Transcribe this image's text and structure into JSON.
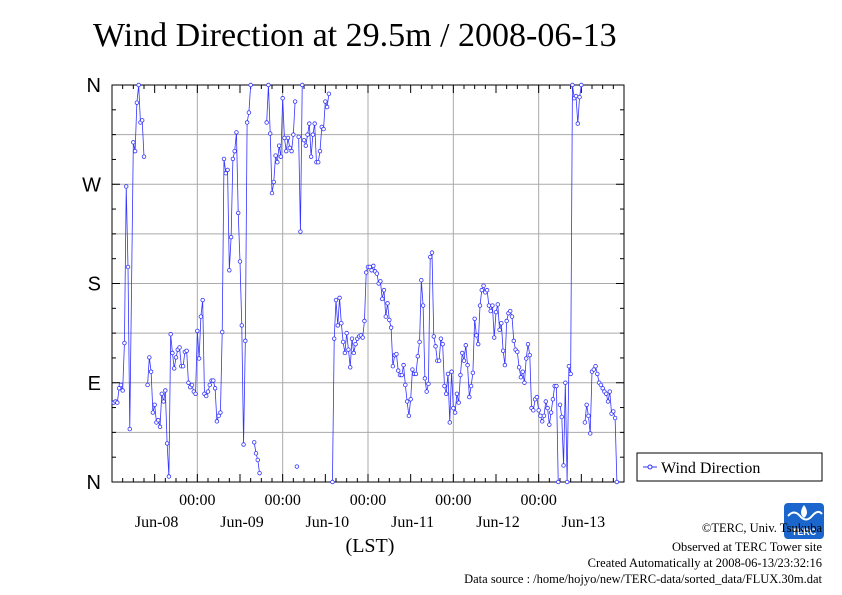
{
  "chart_data": {
    "type": "line",
    "title": "Wind Direction at 29.5m / 2008-06-13",
    "xlabel": "(LST)",
    "ylabel": "",
    "y_tick_labels": [
      "N",
      "E",
      "S",
      "W",
      "N"
    ],
    "y_tick_values": [
      0,
      90,
      180,
      270,
      360
    ],
    "ylim": [
      0,
      360
    ],
    "xlim": [
      0,
      144
    ],
    "x_unit": "hours since 2008-06-08 00:00 LST",
    "x_tick_time_labels": [
      "00:00",
      "00:00",
      "00:00",
      "00:00",
      "00:00"
    ],
    "x_tick_time_values": [
      24,
      48,
      72,
      96,
      120
    ],
    "x_day_labels": [
      "Jun-08",
      "Jun-09",
      "Jun-10",
      "Jun-11",
      "Jun-12",
      "Jun-13"
    ],
    "x_day_centers": [
      12,
      36,
      60,
      84,
      108,
      132
    ],
    "grid": true,
    "legend_position": "right",
    "series": [
      {
        "name": "Wind Direction",
        "color": "#3333ff",
        "segments": [
          [
            [
              0.5,
              72
            ],
            [
              1,
              73
            ],
            [
              1.5,
              72
            ],
            [
              2,
              85
            ],
            [
              2.5,
              88
            ],
            [
              3,
              83
            ],
            [
              3.5,
              126
            ],
            [
              4,
              268
            ],
            [
              4.5,
              195
            ],
            [
              5,
              48
            ],
            [
              6,
              308
            ],
            [
              6.5,
              300
            ],
            [
              7,
              344
            ],
            [
              7.5,
              360
            ],
            [
              8,
              326
            ],
            [
              8.5,
              328
            ],
            [
              9,
              295
            ]
          ],
          [
            [
              10,
              88
            ],
            [
              10.5,
              113
            ],
            [
              11,
              100
            ],
            [
              11.5,
              63
            ],
            [
              12,
              70
            ],
            [
              12.5,
              54
            ],
            [
              13,
              56
            ],
            [
              13.5,
              50
            ],
            [
              14,
              80
            ],
            [
              14.5,
              73
            ],
            [
              15,
              83
            ],
            [
              15.5,
              35
            ],
            [
              16,
              5
            ],
            [
              16.5,
              134
            ],
            [
              17,
              117
            ],
            [
              17.5,
              103
            ],
            [
              18,
              113
            ],
            [
              18.5,
              120
            ],
            [
              19,
              122
            ],
            [
              19.5,
              105
            ],
            [
              20,
              105
            ],
            [
              20.5,
              118
            ],
            [
              21,
              119
            ],
            [
              21.5,
              90
            ],
            [
              22,
              86
            ],
            [
              22.5,
              88
            ],
            [
              23,
              82
            ],
            [
              23.5,
              80
            ],
            [
              24,
              137
            ],
            [
              24.5,
              112
            ],
            [
              25,
              150
            ],
            [
              25.5,
              165
            ],
            [
              26,
              80
            ],
            [
              26.5,
              78
            ],
            [
              27,
              82
            ],
            [
              27.5,
              88
            ],
            [
              28,
              92
            ],
            [
              28.5,
              92
            ],
            [
              29,
              85
            ],
            [
              29.5,
              55
            ],
            [
              30,
              60
            ],
            [
              30.5,
              63
            ],
            [
              31,
              136
            ],
            [
              31.5,
              293
            ],
            [
              32,
              280
            ],
            [
              32.5,
              283
            ],
            [
              33,
              192
            ],
            [
              33.5,
              222
            ],
            [
              34,
              293
            ],
            [
              34.5,
              300
            ],
            [
              35,
              317
            ],
            [
              35.5,
              244
            ],
            [
              36,
              200
            ],
            [
              36.5,
              142
            ],
            [
              37,
              34
            ],
            [
              37.5,
              128
            ],
            [
              38,
              326
            ],
            [
              38.5,
              335
            ],
            [
              39,
              360
            ]
          ],
          [
            [
              40,
              36
            ],
            [
              40.5,
              26
            ],
            [
              41,
              20
            ],
            [
              41.5,
              8
            ]
          ],
          [
            [
              43.5,
              326
            ],
            [
              44,
              360
            ],
            [
              44.5,
              316
            ],
            [
              45,
              262
            ],
            [
              45.5,
              272
            ],
            [
              46,
              296
            ],
            [
              46.5,
              290
            ],
            [
              47,
              305
            ],
            [
              47.5,
              295
            ],
            [
              48,
              348
            ],
            [
              48.5,
              312
            ],
            [
              49,
              300
            ],
            [
              49.5,
              312
            ],
            [
              50,
              303
            ],
            [
              50.5,
              300
            ],
            [
              51,
              315
            ],
            [
              51.5,
              345
            ]
          ],
          [
            [
              52,
              14
            ]
          ],
          [
            [
              52.5,
              313
            ],
            [
              53,
              227
            ],
            [
              53.5,
              360
            ]
          ],
          [
            [
              54,
              310
            ],
            [
              54.5,
              305
            ],
            [
              55,
              315
            ],
            [
              55.5,
              325
            ],
            [
              56,
              295
            ],
            [
              56.5,
              315
            ],
            [
              57,
              325
            ],
            [
              57.5,
              290
            ],
            [
              58,
              290
            ],
            [
              58.5,
              300
            ],
            [
              59,
              322
            ],
            [
              59.5,
              320
            ],
            [
              60,
              345
            ],
            [
              60.5,
              340
            ],
            [
              61,
              352
            ]
          ],
          [
            [
              62,
              0
            ],
            [
              62.5,
              130
            ],
            [
              63,
              165
            ],
            [
              63.5,
              142
            ],
            [
              64,
              167
            ],
            [
              64.5,
              144
            ],
            [
              65,
              127
            ],
            [
              65.5,
              117
            ],
            [
              66,
              135
            ],
            [
              66.5,
              120
            ],
            [
              67,
              104
            ],
            [
              67.5,
              130
            ],
            [
              68,
              117
            ],
            [
              68.5,
              125
            ],
            [
              69,
              130
            ],
            [
              69.5,
              132
            ],
            [
              70,
              133
            ],
            [
              70.5,
              131
            ],
            [
              71,
              146
            ],
            [
              71.5,
              190
            ],
            [
              72,
              195
            ],
            [
              72.5,
              195
            ],
            [
              73,
              192
            ],
            [
              73.5,
              196
            ],
            [
              74,
              191
            ],
            [
              74.5,
              189
            ],
            [
              75,
              180
            ],
            [
              75.5,
              182
            ],
            [
              76,
              166
            ],
            [
              76.5,
              174
            ],
            [
              77,
              150
            ],
            [
              77.5,
              162
            ],
            [
              78,
              147
            ],
            [
              78.5,
              140
            ],
            [
              79,
              105
            ],
            [
              79.5,
              115
            ],
            [
              80,
              116
            ],
            [
              80.5,
              101
            ],
            [
              81,
              97
            ],
            [
              81.5,
              97
            ],
            [
              82,
              106
            ],
            [
              82.5,
              88
            ],
            [
              83,
              73
            ],
            [
              83.5,
              60
            ],
            [
              84,
              75
            ],
            [
              84.5,
              102
            ],
            [
              85,
              98
            ],
            [
              85.5,
              98
            ],
            [
              86,
              114
            ],
            [
              86.5,
              127
            ],
            [
              87,
              183
            ],
            [
              87.5,
              160
            ],
            [
              88,
              94
            ],
            [
              88.5,
              82
            ],
            [
              89,
              89
            ],
            [
              89.5,
              204
            ],
            [
              90,
              208
            ],
            [
              90.5,
              132
            ],
            [
              91,
              123
            ],
            [
              91.5,
              110
            ],
            [
              92,
              110
            ],
            [
              92.5,
              130
            ],
            [
              93,
              125
            ],
            [
              93.5,
              87
            ],
            [
              94,
              80
            ],
            [
              94.5,
              98
            ],
            [
              95,
              54
            ],
            [
              95.5,
              100
            ],
            [
              96,
              67
            ],
            [
              96.5,
              63
            ],
            [
              97,
              80
            ],
            [
              97.5,
              72
            ],
            [
              98,
              97
            ],
            [
              98.5,
              117
            ],
            [
              99,
              110
            ],
            [
              99.5,
              124
            ],
            [
              100,
              106
            ],
            [
              100.5,
              77
            ],
            [
              101,
              87
            ],
            [
              101.5,
              99
            ],
            [
              102,
              148
            ],
            [
              102.5,
              133
            ],
            [
              103,
              125
            ],
            [
              103.5,
              160
            ],
            [
              104,
              174
            ],
            [
              104.5,
              178
            ],
            [
              105,
              172
            ],
            [
              105.5,
              174
            ],
            [
              106,
              160
            ],
            [
              106.5,
              155
            ],
            [
              107,
              160
            ],
            [
              107.5,
              131
            ],
            [
              108,
              154
            ],
            [
              108.5,
              161
            ],
            [
              109,
              138
            ],
            [
              109.5,
              144
            ],
            [
              110,
              119
            ],
            [
              110.5,
              106
            ],
            [
              111,
              146
            ],
            [
              111.5,
              153
            ],
            [
              112,
              155
            ],
            [
              112.5,
              150
            ],
            [
              113,
              128
            ],
            [
              113.5,
              120
            ],
            [
              114,
              118
            ],
            [
              114.5,
              104
            ],
            [
              115,
              95
            ],
            [
              115.5,
              100
            ],
            [
              116,
              90
            ],
            [
              116.5,
              112
            ],
            [
              117,
              125
            ],
            [
              117.5,
              115
            ],
            [
              118,
              67
            ],
            [
              118.5,
              65
            ],
            [
              119,
              75
            ],
            [
              119.5,
              77
            ],
            [
              120,
              65
            ],
            [
              120.5,
              60
            ],
            [
              121,
              55
            ],
            [
              121.5,
              60
            ],
            [
              122,
              73
            ],
            [
              122.5,
              67
            ],
            [
              123,
              52
            ],
            [
              123.5,
              63
            ],
            [
              124,
              75
            ],
            [
              124.5,
              87
            ],
            [
              125,
              87
            ],
            [
              125.5,
              0
            ]
          ],
          [
            [
              126,
              70
            ],
            [
              126.5,
              59
            ],
            [
              127,
              15
            ],
            [
              127.5,
              90
            ],
            [
              128,
              0
            ],
            [
              128.5,
              105
            ],
            [
              129,
              98
            ],
            [
              129.5,
              360
            ],
            [
              130,
              348
            ],
            [
              130.5,
              350
            ],
            [
              131,
              325
            ],
            [
              131.5,
              349
            ],
            [
              132,
              360
            ]
          ],
          [
            [
              133,
              54
            ],
            [
              133.5,
              70
            ],
            [
              134,
              60
            ],
            [
              134.5,
              44
            ],
            [
              135,
              100
            ],
            [
              135.5,
              102
            ],
            [
              136,
              105
            ],
            [
              136.5,
              98
            ],
            [
              137,
              90
            ],
            [
              137.5,
              88
            ],
            [
              138,
              85
            ],
            [
              138.5,
              82
            ],
            [
              139,
              80
            ],
            [
              139.5,
              73
            ],
            [
              140,
              82
            ],
            [
              140.5,
              62
            ],
            [
              141,
              64
            ],
            [
              141.5,
              58
            ],
            [
              142,
              0
            ]
          ]
        ]
      }
    ]
  },
  "footer": {
    "copyright": "©TERC, Univ. Tsukuba",
    "observed": "Observed at TERC Tower site",
    "created": "Created Automatically at 2008-06-13/23:32:16",
    "source": "Data source : /home/hojyo/new/TERC-data/sorted_data/FLUX.30m.dat"
  },
  "logo": {
    "text": "TERC",
    "color": "#1a66cc"
  }
}
